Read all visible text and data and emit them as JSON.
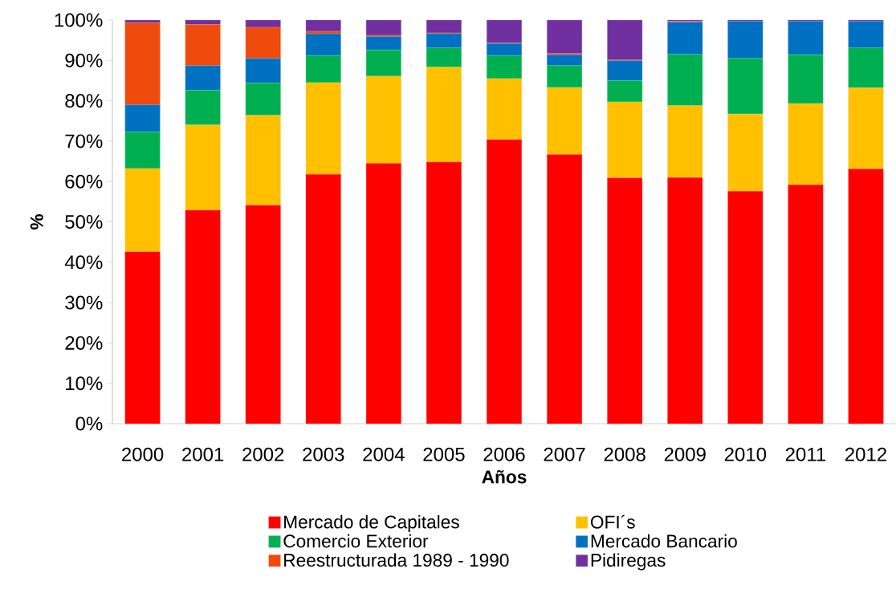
{
  "chart_data": {
    "type": "bar",
    "stacked": true,
    "xlabel": "Años",
    "ylabel": "%",
    "categories": [
      "2000",
      "2001",
      "2002",
      "2003",
      "2004",
      "2005",
      "2006",
      "2007",
      "2008",
      "2009",
      "2010",
      "2011",
      "2012"
    ],
    "series": [
      {
        "name": "Mercado de Capitales",
        "color": "#ff0000",
        "values": [
          42.6,
          52.9,
          54.1,
          61.8,
          64.5,
          64.8,
          70.4,
          66.7,
          60.9,
          61.0,
          57.6,
          59.2,
          63.1
        ]
      },
      {
        "name": "OFI´s",
        "color": "#ffc000",
        "values": [
          20.6,
          21.1,
          22.3,
          22.7,
          21.6,
          23.5,
          15.1,
          16.6,
          18.8,
          17.8,
          19.1,
          20.1,
          20.1
        ]
      },
      {
        "name": "Comercio Exterior",
        "color": "#00b050",
        "values": [
          9.1,
          8.6,
          8.0,
          6.7,
          6.5,
          4.8,
          5.7,
          5.4,
          5.3,
          12.7,
          13.8,
          12.1,
          9.9
        ]
      },
      {
        "name": "Mercado Bancario",
        "color": "#0070c0",
        "values": [
          6.7,
          6.1,
          6.1,
          5.4,
          3.3,
          3.5,
          3.0,
          2.7,
          4.9,
          8.0,
          9.2,
          8.3,
          6.6
        ]
      },
      {
        "name": "Reestructurada 1989 - 1990",
        "color": "#ee4b0c",
        "values": [
          20.3,
          10.2,
          7.7,
          0.6,
          0.3,
          0.2,
          0.1,
          0.3,
          0.2,
          0.2,
          0,
          0,
          0
        ]
      },
      {
        "name": "Pidiregas",
        "color": "#7030a0",
        "values": [
          0.7,
          1.1,
          1.8,
          2.8,
          3.8,
          3.2,
          5.7,
          8.3,
          9.9,
          0.3,
          0.3,
          0.3,
          0.3
        ]
      }
    ],
    "ylim": [
      0,
      100
    ],
    "yticks": [
      {
        "value": 0,
        "label": "0%"
      },
      {
        "value": 10,
        "label": "10%"
      },
      {
        "value": 20,
        "label": "20%"
      },
      {
        "value": 30,
        "label": "30%"
      },
      {
        "value": 40,
        "label": "40%"
      },
      {
        "value": 50,
        "label": "50%"
      },
      {
        "value": 60,
        "label": "60%"
      },
      {
        "value": 70,
        "label": "70%"
      },
      {
        "value": 80,
        "label": "80%"
      },
      {
        "value": 90,
        "label": "90%"
      },
      {
        "value": 100,
        "label": "100%"
      }
    ],
    "legend": "bottom",
    "grid": false
  }
}
